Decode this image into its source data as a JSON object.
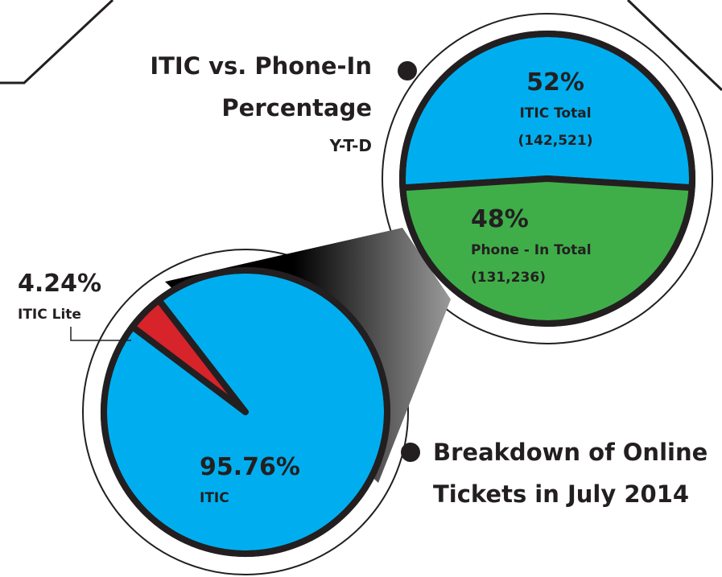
{
  "chart_data": [
    {
      "type": "pie",
      "title": "ITIC vs. Phone-In Percentage",
      "subtitle": "Y-T-D",
      "categories": [
        "ITIC Total",
        "Phone - In Total"
      ],
      "values": [
        52,
        48
      ],
      "value_labels": [
        "52%",
        "48%"
      ],
      "counts": [
        142521,
        131236
      ],
      "count_labels": [
        "(142,521)",
        "(131,236)"
      ],
      "colors": [
        "#00aeef",
        "#3fae49"
      ]
    },
    {
      "type": "pie",
      "title": "Breakdown of Online Tickets in July 2014",
      "categories": [
        "ITIC Lite",
        "ITIC"
      ],
      "values": [
        4.24,
        95.76
      ],
      "value_labels": [
        "4.24%",
        "95.76%"
      ],
      "colors": [
        "#d7232a",
        "#00aeef"
      ]
    }
  ]
}
